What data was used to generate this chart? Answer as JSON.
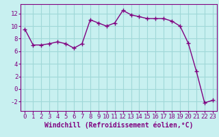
{
  "x": [
    0,
    1,
    2,
    3,
    4,
    5,
    6,
    7,
    8,
    9,
    10,
    11,
    12,
    13,
    14,
    15,
    16,
    17,
    18,
    19,
    20,
    21,
    22,
    23
  ],
  "y": [
    9.5,
    7.0,
    7.0,
    7.2,
    7.5,
    7.2,
    6.5,
    7.2,
    11.0,
    10.5,
    10.0,
    10.5,
    12.5,
    11.8,
    11.5,
    11.2,
    11.2,
    11.2,
    10.8,
    10.0,
    7.3,
    2.8,
    -2.2,
    -1.8
  ],
  "line_color": "#800080",
  "marker": "+",
  "marker_size": 4,
  "background_color": "#c8f0f0",
  "grid_color": "#a0d8d8",
  "xlabel": "Windchill (Refroidissement éolien,°C)",
  "xlabel_fontsize": 7,
  "ylim": [
    -3.5,
    13.5
  ],
  "xlim": [
    -0.5,
    23.5
  ],
  "yticks": [
    -2,
    0,
    2,
    4,
    6,
    8,
    10,
    12
  ],
  "xticks": [
    0,
    1,
    2,
    3,
    4,
    5,
    6,
    7,
    8,
    9,
    10,
    11,
    12,
    13,
    14,
    15,
    16,
    17,
    18,
    19,
    20,
    21,
    22,
    23
  ],
  "tick_fontsize": 6.5,
  "line_width": 1.0,
  "spine_color": "#800080"
}
